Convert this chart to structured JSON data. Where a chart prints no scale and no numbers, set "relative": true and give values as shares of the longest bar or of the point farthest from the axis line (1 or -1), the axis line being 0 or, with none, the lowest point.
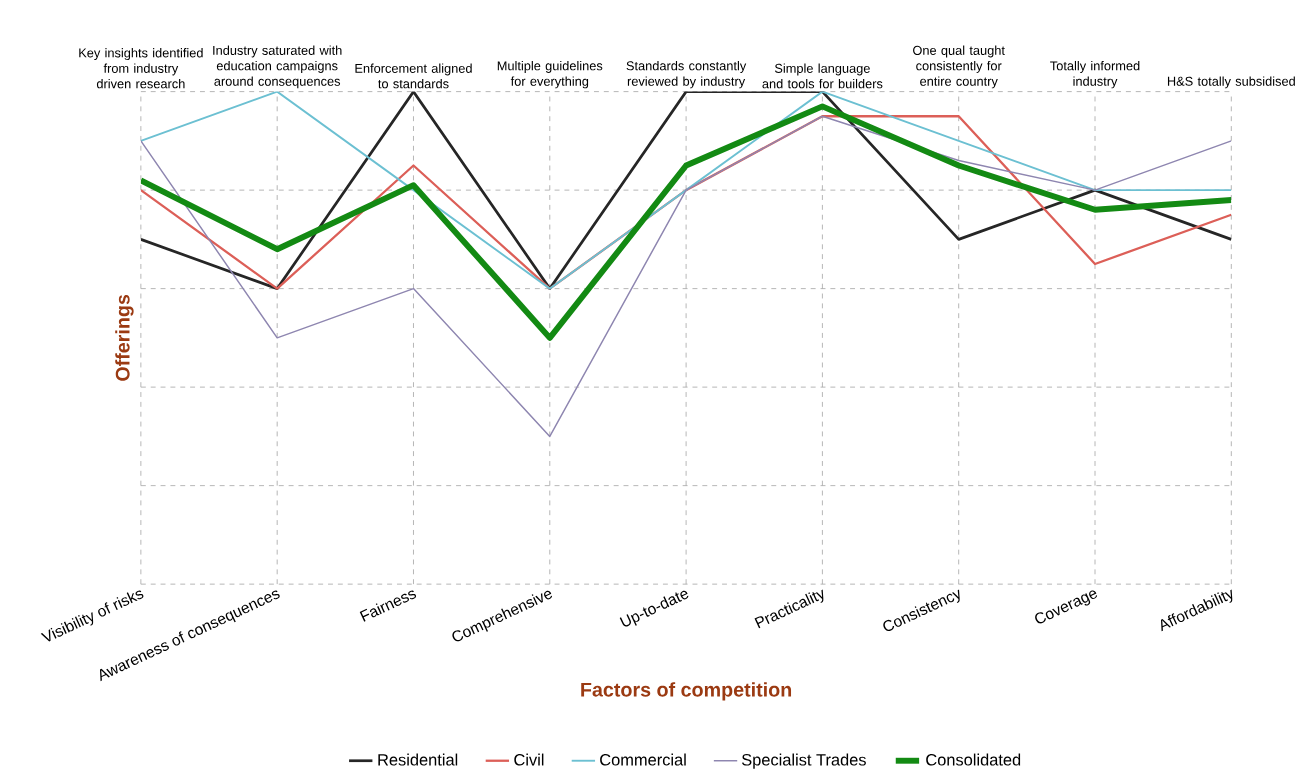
{
  "chart_data": {
    "type": "line",
    "relative": true,
    "xlabel": "Factors of competition",
    "ylabel": "Offerings",
    "categories": [
      "Visibility of risks",
      "Awareness of consequences",
      "Fairness",
      "Comprehensive",
      "Up-to-date",
      "Practicality",
      "Consistency",
      "Coverage",
      "Affordability"
    ],
    "annotations": [
      "Key insights identified from industry driven research",
      "Industry saturated with education campaigns around consequences",
      "Enforcement aligned to standards",
      "Multiple guidelines for everything",
      "Standards constantly reviewed by industry",
      "Simple language and tools for builders",
      "One qual taught consistently for entire country",
      "Totally informed industry",
      "H&S totally subsidised"
    ],
    "series": [
      {
        "name": "Residential",
        "color": "#262626",
        "values": [
          0.7,
          0.6,
          1.0,
          0.6,
          1.0,
          1.0,
          0.7,
          0.8,
          0.7
        ]
      },
      {
        "name": "Civil",
        "color": "#dc5f58",
        "values": [
          0.8,
          0.6,
          0.85,
          0.6,
          0.8,
          0.95,
          0.95,
          0.65,
          0.75
        ]
      },
      {
        "name": "Commercial",
        "color": "#6cc0d2",
        "values": [
          0.9,
          1.0,
          0.8,
          0.6,
          0.8,
          1.0,
          0.9,
          0.8,
          0.8
        ]
      },
      {
        "name": "Specialist Trades",
        "color": "#8e86b0",
        "values": [
          0.9,
          0.5,
          0.6,
          0.3,
          0.8,
          0.95,
          0.86,
          0.8,
          0.9
        ]
      },
      {
        "name": "Consolidated",
        "color": "#138a13",
        "values": [
          0.82,
          0.68,
          0.81,
          0.5,
          0.85,
          0.97,
          0.85,
          0.76,
          0.78
        ]
      }
    ],
    "grid": true,
    "legend": "bottom",
    "marker": "none",
    "line_style": "solid"
  }
}
